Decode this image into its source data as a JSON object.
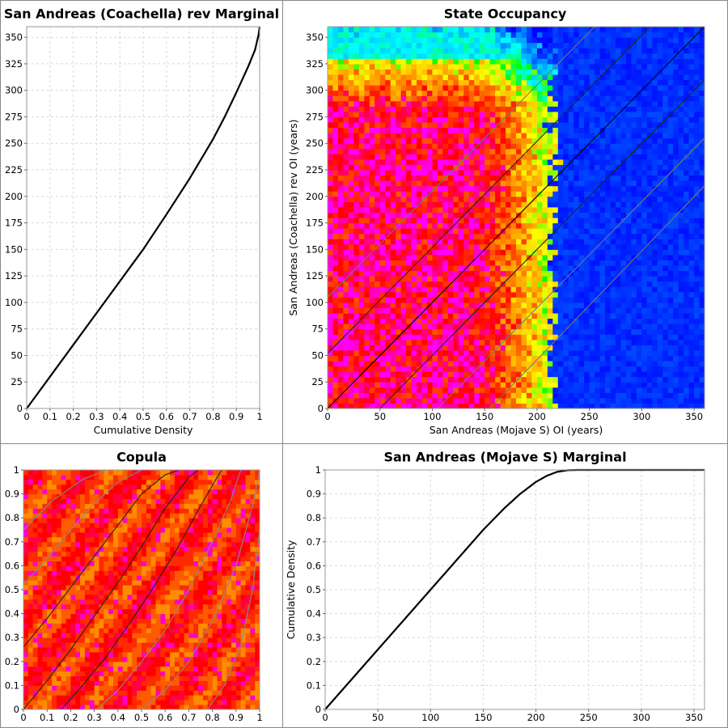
{
  "chart_data": [
    {
      "id": "p1",
      "type": "line",
      "title": "San Andreas (Coachella) rev Marginal",
      "xlabel": "Cumulative Density",
      "ylabel": "",
      "xlim": [
        0,
        1
      ],
      "ylim": [
        0,
        360
      ],
      "xticks": [
        "0",
        "0.1",
        "0.2",
        "0.3",
        "0.4",
        "0.5",
        "0.6",
        "0.7",
        "0.8",
        "0.9",
        "1"
      ],
      "yticks": [
        "0",
        "25",
        "50",
        "75",
        "100",
        "125",
        "150",
        "175",
        "200",
        "225",
        "250",
        "275",
        "300",
        "325",
        "350"
      ],
      "grid": true,
      "series": [
        {
          "x": [
            0,
            0.1,
            0.2,
            0.3,
            0.4,
            0.5,
            0.6,
            0.7,
            0.8,
            0.85,
            0.9,
            0.95,
            0.98,
            0.995,
            1.0
          ],
          "y": [
            0,
            30,
            60,
            90,
            120,
            150,
            183,
            217,
            254,
            275,
            298,
            322,
            338,
            352,
            360
          ]
        }
      ]
    },
    {
      "id": "p2",
      "type": "heatmap",
      "title": "State Occupancy",
      "xlabel": "San Andreas (Mojave S) OI (years)",
      "ylabel": "San Andreas (Coachella) rev OI (years)",
      "xlim": [
        0,
        360
      ],
      "ylim": [
        0,
        360
      ],
      "xticks": [
        "0",
        "50",
        "100",
        "150",
        "200",
        "250",
        "300",
        "350"
      ],
      "yticks": [
        "0",
        "25",
        "50",
        "75",
        "100",
        "125",
        "150",
        "175",
        "200",
        "225",
        "250",
        "275",
        "300",
        "325",
        "350"
      ],
      "heatmap": {
        "nx": 72,
        "ny": 72,
        "colormap": "rainbow",
        "x_cutoff": 215,
        "y_cutoff": 340,
        "diagonal_offsets": [
          -155,
          -105,
          -50,
          0,
          52,
          105
        ]
      },
      "series": [
        {
          "x1": 0,
          "y1": 0,
          "x2": 360,
          "y2": 360
        },
        {
          "x1": 0,
          "y1": 52,
          "x2": 308,
          "y2": 360
        },
        {
          "x1": 0,
          "y1": 105,
          "x2": 255,
          "y2": 360
        },
        {
          "x1": 50,
          "y1": 0,
          "x2": 360,
          "y2": 310
        },
        {
          "x1": 105,
          "y1": 0,
          "x2": 360,
          "y2": 255
        },
        {
          "x1": 155,
          "y1": 0,
          "x2": 360,
          "y2": 210
        }
      ]
    },
    {
      "id": "p3",
      "type": "heatmap",
      "title": "Copula",
      "xlabel": "",
      "ylabel": "",
      "xlim": [
        0,
        1
      ],
      "ylim": [
        0,
        1
      ],
      "xticks": [
        "0",
        "0.1",
        "0.2",
        "0.3",
        "0.4",
        "0.5",
        "0.6",
        "0.7",
        "0.8",
        "0.9",
        "1"
      ],
      "yticks": [
        "0",
        "0.1",
        "0.2",
        "0.3",
        "0.4",
        "0.5",
        "0.6",
        "0.7",
        "0.8",
        "0.9",
        "1"
      ],
      "heatmap": {
        "nx": 50,
        "ny": 50,
        "colormap": "red-magenta"
      },
      "series": [
        {
          "name": "",
          "x": [
            0,
            0.12,
            0.25,
            0.35,
            0.42,
            0.46
          ],
          "y": [
            0.75,
            0.87,
            0.96,
            1.0,
            1.0,
            1.0
          ]
        },
        {
          "x": [
            0,
            0.1,
            0.2,
            0.3,
            0.4,
            0.5,
            0.55,
            0.6
          ],
          "y": [
            0.52,
            0.63,
            0.75,
            0.86,
            0.95,
            1.0,
            1.0,
            1.0
          ]
        },
        {
          "x": [
            0,
            0.1,
            0.2,
            0.3,
            0.4,
            0.5,
            0.6,
            0.66,
            0.7
          ],
          "y": [
            0.26,
            0.38,
            0.51,
            0.64,
            0.77,
            0.9,
            0.98,
            1.0,
            1.0
          ]
        },
        {
          "x": [
            0,
            0.1,
            0.2,
            0.3,
            0.4,
            0.5,
            0.6,
            0.7,
            0.74
          ],
          "y": [
            0.0,
            0.12,
            0.25,
            0.39,
            0.53,
            0.68,
            0.84,
            0.97,
            1.0
          ]
        },
        {
          "x": [
            0.16,
            0.25,
            0.35,
            0.45,
            0.55,
            0.65,
            0.75,
            0.82,
            0.84
          ],
          "y": [
            0.0,
            0.1,
            0.22,
            0.36,
            0.51,
            0.67,
            0.85,
            0.97,
            1.0
          ]
        },
        {
          "x": [
            0.31,
            0.4,
            0.5,
            0.6,
            0.7,
            0.8,
            0.88,
            0.92
          ],
          "y": [
            0.0,
            0.08,
            0.2,
            0.33,
            0.5,
            0.7,
            0.88,
            1.0
          ]
        },
        {
          "x": [
            0.5,
            0.6,
            0.7,
            0.8,
            0.9,
            0.97,
            1.0
          ],
          "y": [
            0.0,
            0.08,
            0.2,
            0.37,
            0.6,
            0.85,
            1.0
          ]
        },
        {
          "x": [
            0.78,
            0.85,
            0.92,
            0.97,
            1.0
          ],
          "y": [
            0.0,
            0.1,
            0.27,
            0.5,
            0.75
          ]
        }
      ]
    },
    {
      "id": "p4",
      "type": "line",
      "title": "San Andreas (Mojave S) Marginal",
      "xlabel": "",
      "ylabel": "Cumulative Density",
      "xlim": [
        0,
        360
      ],
      "ylim": [
        0,
        1
      ],
      "xticks": [
        "0",
        "50",
        "100",
        "150",
        "200",
        "250",
        "300",
        "350"
      ],
      "yticks": [
        "0",
        "0.1",
        "0.2",
        "0.3",
        "0.4",
        "0.5",
        "0.6",
        "0.7",
        "0.8",
        "0.9",
        "1"
      ],
      "grid": true,
      "series": [
        {
          "x": [
            0,
            50,
            100,
            150,
            170,
            185,
            200,
            210,
            220,
            230,
            240,
            360
          ],
          "y": [
            0,
            0.25,
            0.5,
            0.75,
            0.84,
            0.9,
            0.95,
            0.975,
            0.992,
            0.999,
            1.0,
            1.0
          ]
        }
      ]
    }
  ]
}
